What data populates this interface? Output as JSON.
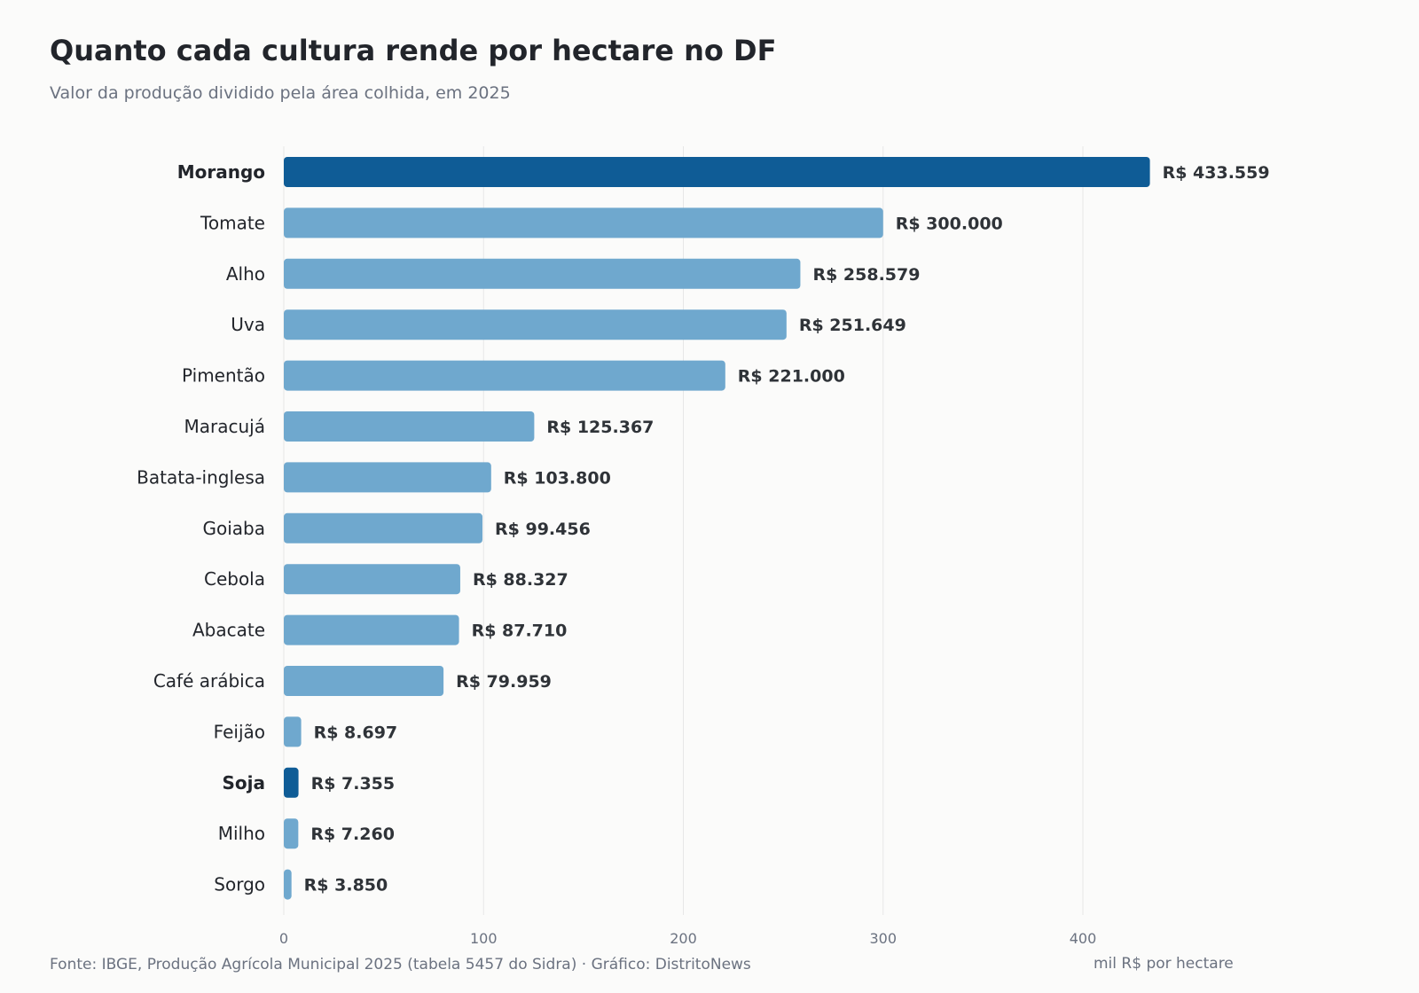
{
  "header": {
    "title": "Quanto cada cultura rende por hectare no DF",
    "subtitle": "Valor da produção dividido pela área colhida, em 2025"
  },
  "footer": {
    "source": "Fonte: IBGE, Produção Agrícola Municipal 2025 (tabela 5457 do Sidra)  ·  Gráfico: DistritoNews",
    "unit": "mil R$ por hectare"
  },
  "colors": {
    "highlight": "#0f5c96",
    "default": "#6fa8ce",
    "grid": "#e7e7e7",
    "label": "#22252b",
    "value": "#2f3338",
    "tick": "#6b7280"
  },
  "chart_data": {
    "type": "bar",
    "orientation": "horizontal",
    "title": "Quanto cada cultura rende por hectare no DF",
    "subtitle": "Valor da produção dividido pela área colhida, em 2025",
    "xlabel": "mil R$ por hectare",
    "xlim": [
      0,
      490
    ],
    "xticks": [
      0,
      100,
      200,
      300,
      400
    ],
    "grid": "vertical",
    "categories": [
      "Morango",
      "Tomate",
      "Alho",
      "Uva",
      "Pimentão",
      "Maracujá",
      "Batata-inglesa",
      "Goiaba",
      "Cebola",
      "Abacate",
      "Café arábica",
      "Feijão",
      "Soja",
      "Milho",
      "Sorgo"
    ],
    "values": [
      433.559,
      300.0,
      258.579,
      251.649,
      221.0,
      125.367,
      103.8,
      99.456,
      88.327,
      87.71,
      79.959,
      8.697,
      7.355,
      7.26,
      3.85
    ],
    "value_labels": [
      "R$ 433.559",
      "R$ 300.000",
      "R$ 258.579",
      "R$ 251.649",
      "R$ 221.000",
      "R$ 125.367",
      "R$ 103.800",
      "R$ 99.456",
      "R$ 88.327",
      "R$ 87.710",
      "R$ 79.959",
      "R$ 8.697",
      "R$ 7.355",
      "R$ 7.260",
      "R$ 3.850"
    ],
    "highlighted": [
      "Morango",
      "Soja"
    ]
  }
}
